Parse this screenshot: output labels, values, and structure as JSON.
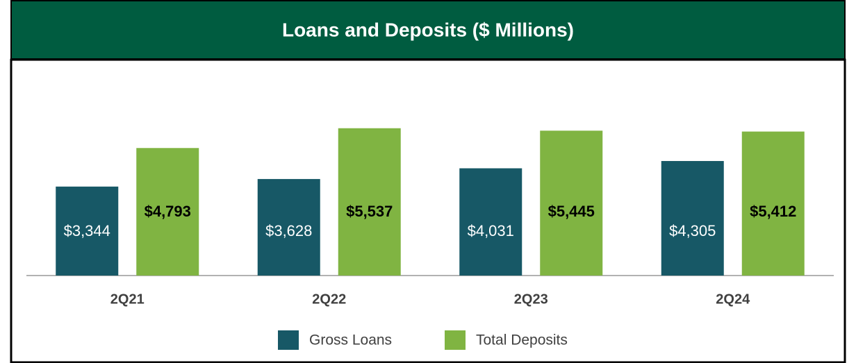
{
  "chart_data": {
    "type": "bar",
    "title": "Loans and Deposits ($ Millions)",
    "categories": [
      "2Q21",
      "2Q22",
      "2Q23",
      "2Q24"
    ],
    "series": [
      {
        "name": "Gross Loans",
        "color": "#175866",
        "values": [
          3344,
          3628,
          4031,
          4305
        ],
        "value_labels": [
          "$3,344",
          "$3,628",
          "$4,031",
          "$4,305"
        ]
      },
      {
        "name": "Total Deposits",
        "color": "#80b442",
        "values": [
          4793,
          5537,
          5445,
          5412
        ],
        "value_labels": [
          "$4,793",
          "$5,537",
          "$5,445",
          "$5,412"
        ]
      }
    ],
    "ylim": [
      0,
      6000
    ],
    "legend": "bottom"
  }
}
